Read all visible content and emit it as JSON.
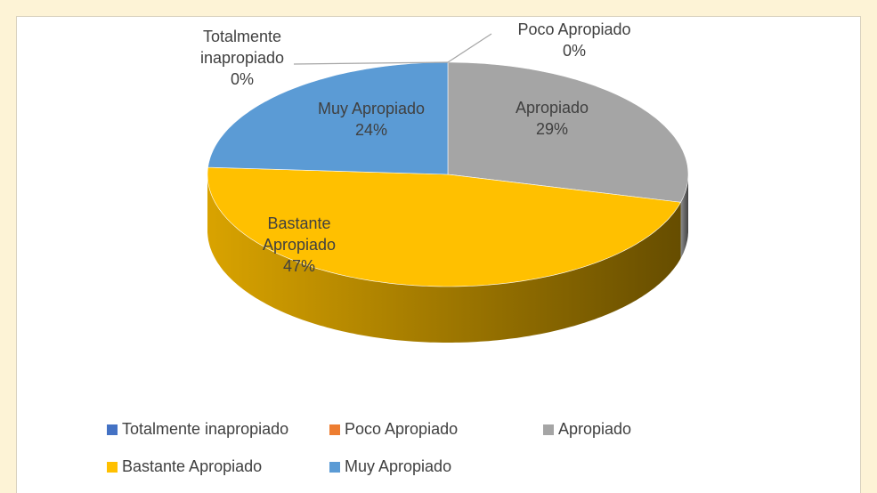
{
  "chart_data": {
    "type": "pie",
    "categories": [
      "Totalmente inapropiado",
      "Poco Apropiado",
      "Apropiado",
      "Bastante Apropiado",
      "Muy Apropiado"
    ],
    "values": [
      0,
      0,
      29,
      47,
      24
    ],
    "value_labels": [
      "0%",
      "0%",
      "29%",
      "47%",
      "24%"
    ],
    "colors": [
      "#4472c4",
      "#ed7d31",
      "#a5a5a5",
      "#ffc000",
      "#5b9bd5"
    ],
    "legend": "bottom"
  }
}
